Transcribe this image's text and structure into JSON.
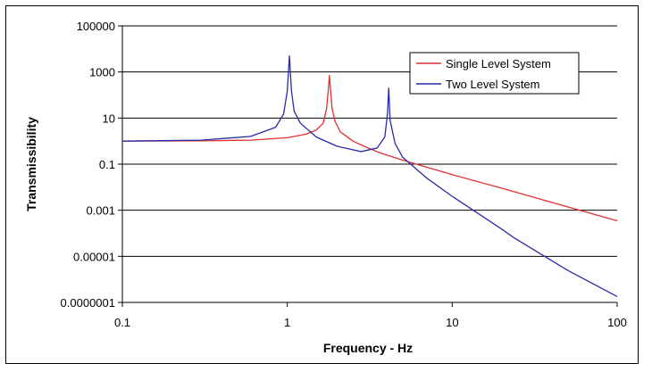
{
  "chart_data": {
    "type": "line",
    "title": "",
    "xlabel": "Frequency - Hz",
    "ylabel": "Transmissibility",
    "xscale": "log",
    "yscale": "log",
    "xlim": [
      0.1,
      100
    ],
    "ylim": [
      1e-07,
      100000
    ],
    "grid": "horizontal major",
    "legend_position": "top-right",
    "x_ticks": [
      {
        "value": 0.1,
        "label": "0.1"
      },
      {
        "value": 1,
        "label": "1"
      },
      {
        "value": 10,
        "label": "10"
      },
      {
        "value": 100,
        "label": "100"
      }
    ],
    "y_ticks": [
      {
        "value": 100000,
        "label": "100000"
      },
      {
        "value": 1000,
        "label": "1000"
      },
      {
        "value": 10,
        "label": "10"
      },
      {
        "value": 0.1,
        "label": "0.1"
      },
      {
        "value": 0.001,
        "label": "0.001"
      },
      {
        "value": 1e-05,
        "label": "0.00001"
      },
      {
        "value": 1e-07,
        "label": "0.0000001"
      }
    ],
    "series": [
      {
        "name": "Single Level System",
        "color": "#e03030",
        "x": [
          0.1,
          0.3,
          0.6,
          1.0,
          1.3,
          1.5,
          1.65,
          1.73,
          1.77,
          1.8,
          1.83,
          1.87,
          1.95,
          2.1,
          2.5,
          3.0,
          3.6,
          5,
          10,
          20,
          50,
          100
        ],
        "y": [
          1.0,
          1.03,
          1.1,
          1.4,
          2.0,
          3.0,
          6.0,
          25,
          150,
          700,
          150,
          25,
          7.0,
          2.5,
          1.0,
          0.55,
          0.32,
          0.15,
          0.035,
          0.009,
          0.0014,
          0.00035
        ]
      },
      {
        "name": "Two Level System",
        "color": "#2a2aa8",
        "x": [
          0.1,
          0.3,
          0.6,
          0.85,
          0.95,
          1.0,
          1.03,
          1.06,
          1.1,
          1.2,
          1.5,
          2.0,
          2.8,
          3.5,
          3.9,
          4.05,
          4.12,
          4.2,
          4.5,
          5,
          7,
          10,
          20,
          24,
          50,
          100
        ],
        "y": [
          1.0,
          1.1,
          1.6,
          4.0,
          15,
          150,
          5000,
          150,
          20,
          6.0,
          1.5,
          0.6,
          0.35,
          0.5,
          1.5,
          15,
          200,
          8,
          0.8,
          0.2,
          0.025,
          0.004,
          0.00015,
          6e-05,
          2.5e-06,
          1.8e-07
        ]
      }
    ]
  }
}
